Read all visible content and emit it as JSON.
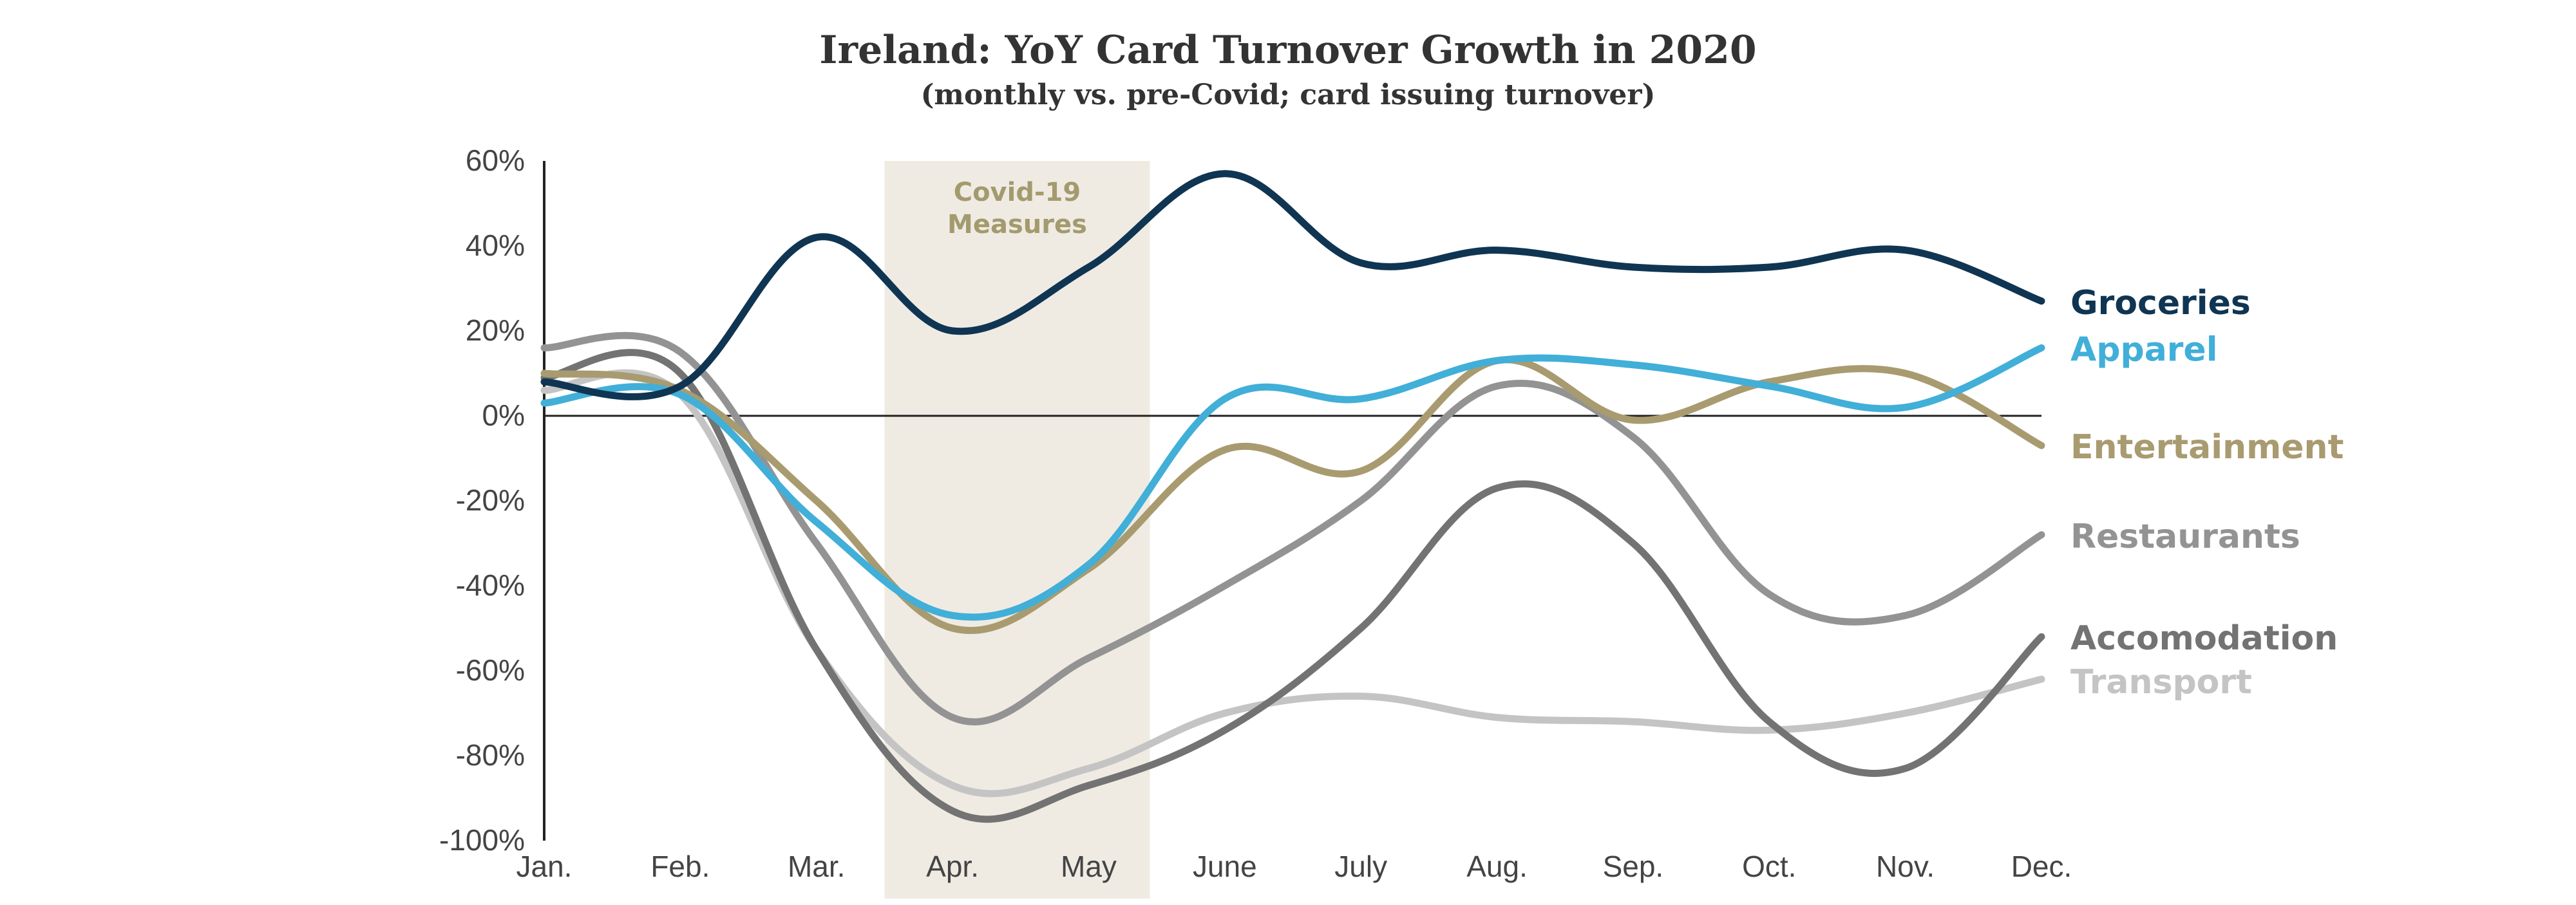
{
  "chart_data": {
    "type": "line",
    "title": "Ireland: YoY Card Turnover Growth in 2020",
    "subtitle": "(monthly vs. pre-Covid; card issuing turnover)",
    "categories": [
      "Jan.",
      "Feb.",
      "Mar.",
      "Apr.",
      "May",
      "June",
      "July",
      "Aug.",
      "Sep.",
      "Oct.",
      "Nov.",
      "Dec."
    ],
    "y_ticks": [
      "60%",
      "40%",
      "20%",
      "0%",
      "-20%",
      "-40%",
      "-60%",
      "-80%",
      "-100%"
    ],
    "ylim": [
      -100,
      60
    ],
    "grid": false,
    "zero_line": true,
    "annotation": {
      "text_line1": "Covid-19",
      "text_line2": "Measures",
      "x_start": 2.5,
      "x_end": 4.45,
      "color": "#efebe3",
      "text_color": "#a39a6e"
    },
    "series": [
      {
        "name": "Groceries",
        "color": "#0f3552",
        "values": [
          8,
          7,
          42,
          20,
          35,
          57,
          36,
          39,
          35,
          35,
          39,
          27
        ]
      },
      {
        "name": "Apparel",
        "color": "#41afd8",
        "values": [
          3,
          5,
          -25,
          -47,
          -35,
          4,
          4,
          13,
          12,
          7,
          2,
          16
        ]
      },
      {
        "name": "Entertainment",
        "color": "#a99b70",
        "values": [
          10,
          6,
          -20,
          -50,
          -36,
          -8,
          -13,
          13,
          -1,
          8,
          10,
          -7
        ]
      },
      {
        "name": "Restaurants",
        "color": "#939393",
        "values": [
          16,
          15,
          -30,
          -71,
          -57,
          -40,
          -20,
          7,
          -5,
          -42,
          -47,
          -28
        ]
      },
      {
        "name": "Accomodation",
        "color": "#737373",
        "values": [
          9,
          10,
          -55,
          -93,
          -87,
          -74,
          -50,
          -17,
          -30,
          -72,
          -83,
          -52
        ]
      },
      {
        "name": "Transport",
        "color": "#c4c4c4",
        "values": [
          6,
          5,
          -55,
          -87,
          -83,
          -70,
          -66,
          -71,
          -72,
          -74,
          -70,
          -62
        ]
      }
    ]
  }
}
